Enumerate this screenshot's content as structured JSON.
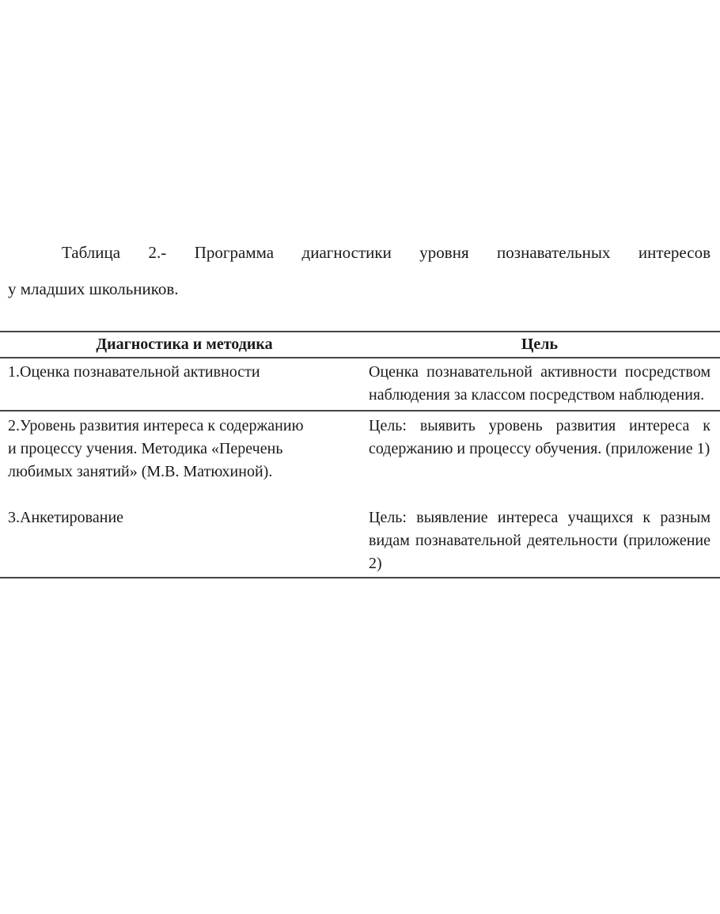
{
  "caption": {
    "line1": "Таблица 2.- Программа диагностики уровня познавательных интересов",
    "line2": "у младших школьников."
  },
  "table": {
    "headers": [
      "Диагностика и методика",
      "Цель"
    ],
    "rows": [
      {
        "method": "1.Оценка познавательной активности",
        "goal": "Оценка познавательной активности посредством наблюдения за классом посредством наблюдения."
      },
      {
        "method": "2.Уровень развития интереса к содержанию и процессу учения. Методика «Перечень любимых занятий» (М.В. Матюхиной).",
        "goal": "Цель: выявить уровень развития интереса к содержанию и процессу обучения. (приложение 1)"
      },
      {
        "method": "3.Анкетирование",
        "goal": "Цель: выявление интереса учащихся к разным видам познавательной деятельности (приложение 2)"
      }
    ]
  }
}
